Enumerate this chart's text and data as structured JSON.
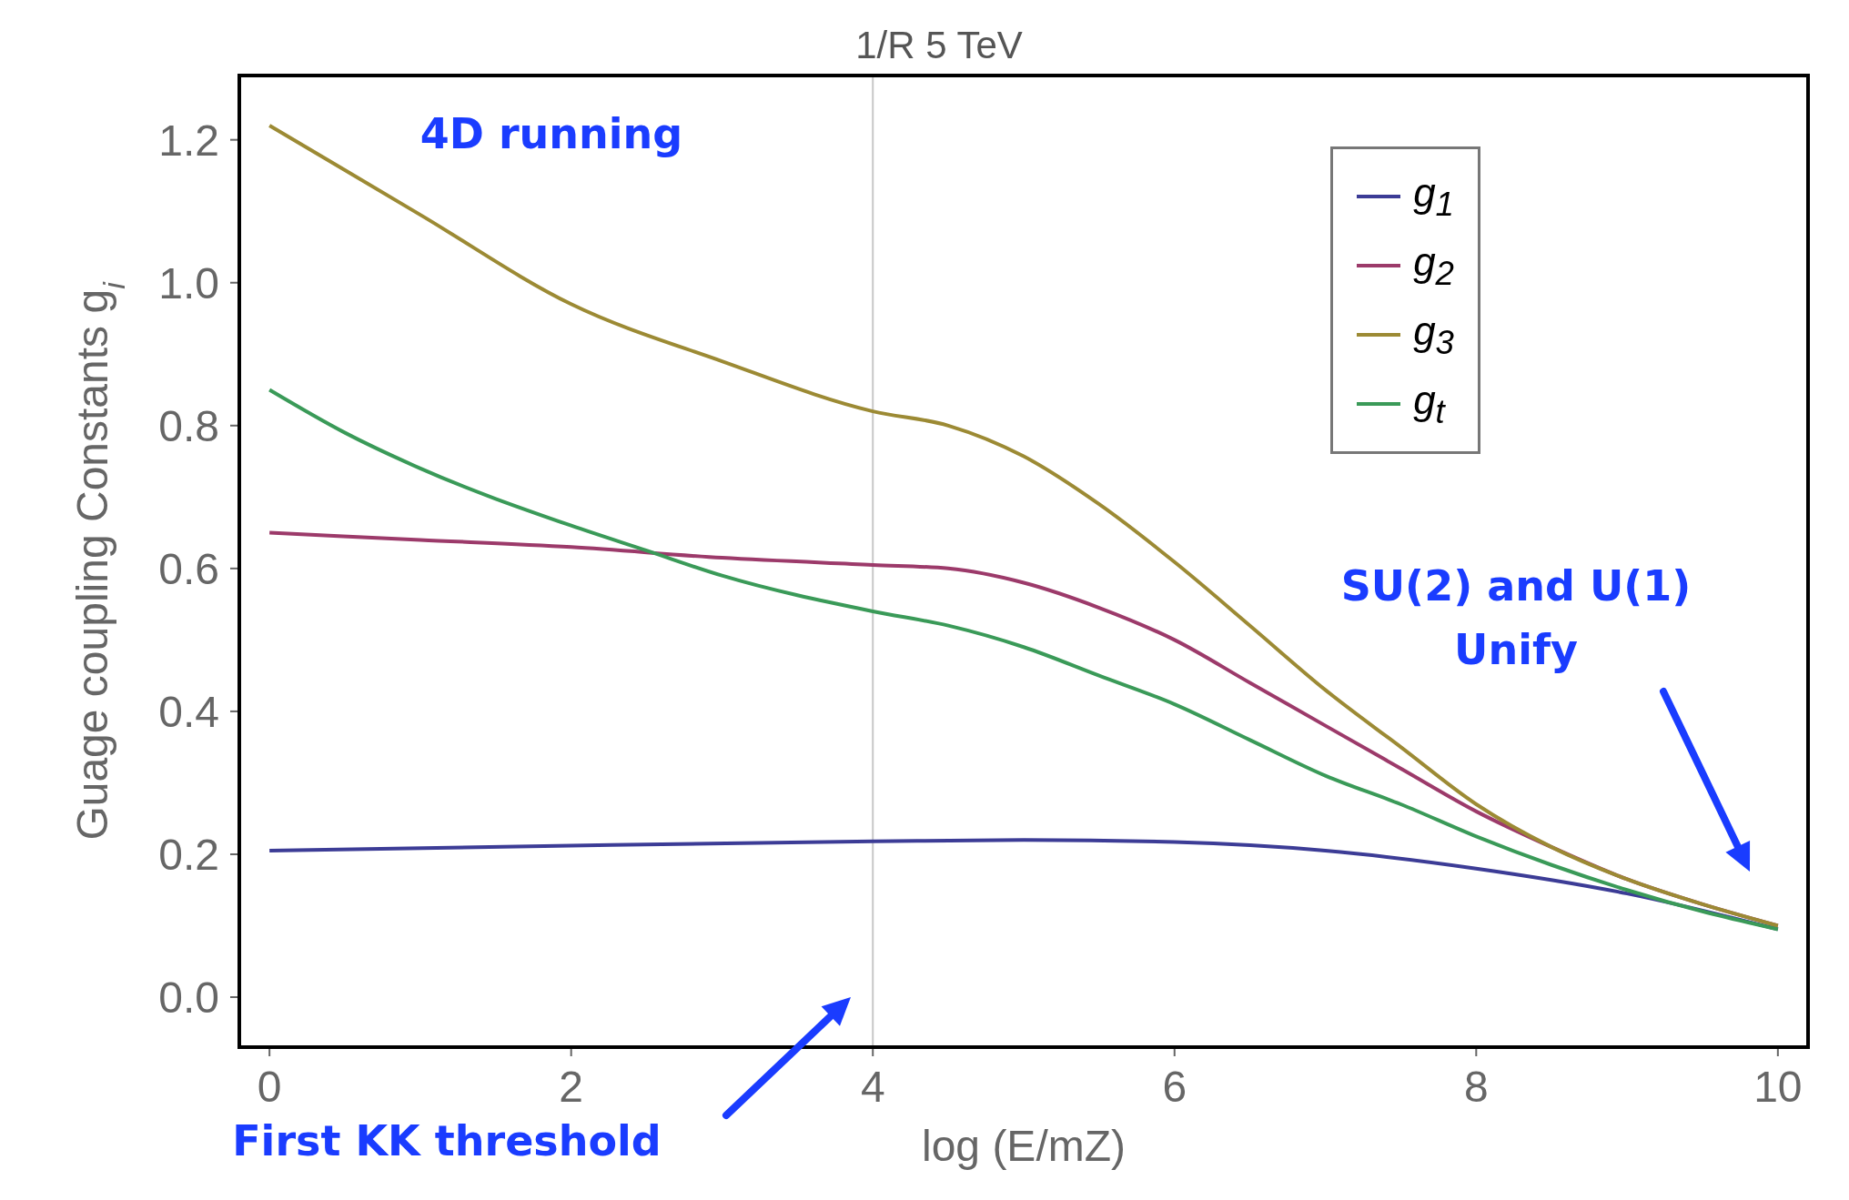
{
  "chart_data": {
    "type": "line",
    "title": "1/R 5 TeV",
    "xlabel": "log (E/mZ)",
    "ylabel": "Guage coupling Constants g$_{i}$",
    "xlim": [
      -0.2,
      10.2
    ],
    "xticks": [
      0,
      2,
      4,
      6,
      8,
      10
    ],
    "ylim": [
      -0.07,
      1.29
    ],
    "yticks": [
      {
        "value": 0,
        "label": "0.0"
      },
      0.2,
      0.4,
      0.6,
      0.8,
      {
        "value": 1,
        "label": "1.0"
      },
      1.2
    ],
    "legend": "top right",
    "marker": "none",
    "line_style": "solid",
    "series": [
      {
        "name": "g$_{1}$",
        "color": "#3c3c96",
        "x": [
          0,
          2,
          4,
          5,
          6,
          7,
          8,
          9,
          10
        ],
        "values": [
          0.205,
          0.212,
          0.218,
          0.22,
          0.217,
          0.205,
          0.18,
          0.145,
          0.095
        ]
      },
      {
        "name": "g$_{2}$",
        "color": "#9c3a6a",
        "x": [
          0,
          1,
          2,
          3,
          4,
          4.5,
          5,
          5.5,
          6,
          6.5,
          7,
          7.5,
          8,
          8.5,
          9,
          9.5,
          10
        ],
        "values": [
          0.65,
          0.64,
          0.63,
          0.615,
          0.605,
          0.6,
          0.58,
          0.545,
          0.5,
          0.44,
          0.38,
          0.32,
          0.26,
          0.21,
          0.165,
          0.13,
          0.1
        ]
      },
      {
        "name": "g$_{3}$",
        "color": "#9c8a34",
        "x": [
          0,
          1,
          2,
          3,
          4,
          4.5,
          5,
          5.5,
          6,
          6.5,
          7,
          7.5,
          8,
          8.5,
          9,
          9.5,
          10
        ],
        "values": [
          1.22,
          1.095,
          0.97,
          0.89,
          0.82,
          0.8,
          0.757,
          0.69,
          0.609,
          0.52,
          0.43,
          0.35,
          0.27,
          0.21,
          0.165,
          0.13,
          0.1
        ]
      },
      {
        "name": "g$_{t}$",
        "color": "#3a9a58",
        "x": [
          0,
          0.5,
          1,
          2,
          2.5,
          3,
          4,
          4.5,
          5,
          5.5,
          6,
          6.5,
          7,
          7.5,
          8,
          8.5,
          9,
          9.5,
          10
        ],
        "values": [
          0.85,
          0.79,
          0.74,
          0.66,
          0.625,
          0.59,
          0.54,
          0.52,
          0.49,
          0.45,
          0.41,
          0.36,
          0.31,
          0.27,
          0.225,
          0.185,
          0.15,
          0.12,
          0.095
        ]
      }
    ],
    "ref_lines": [
      {
        "axis": "x",
        "value": 4,
        "color": "#c8c8c8"
      }
    ],
    "annotations": [
      "4D running",
      "First KK threshold",
      "SU(2) and U(1)\nUnify"
    ]
  }
}
